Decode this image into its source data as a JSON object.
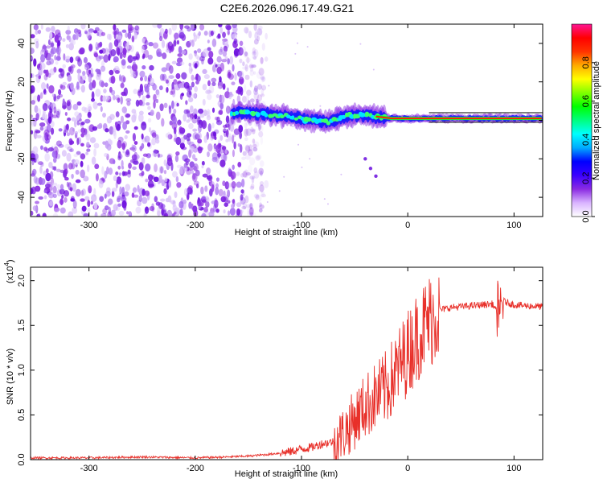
{
  "title": "C2E6.2026.096.17.49.G21",
  "chart_data": [
    {
      "type": "heatmap",
      "title": "",
      "xlabel": "Height of straight line (km)",
      "ylabel": "Frequency (Hz)",
      "xlim": [
        -355,
        127
      ],
      "ylim": [
        -50,
        50
      ],
      "xticks": [
        -300,
        -200,
        -100,
        0,
        100
      ],
      "yticks": [
        -40,
        -20,
        0,
        20,
        40
      ],
      "grid": false,
      "noise_region_x": [
        -355,
        -145
      ],
      "signal_ridge": {
        "x": [
          -165,
          -150,
          -130,
          -110,
          -95,
          -85,
          -75,
          -60,
          -45,
          -30,
          -15,
          0,
          20,
          50,
          80,
          100,
          127
        ],
        "frequency": [
          4,
          4,
          3,
          2,
          0,
          0,
          -1,
          2,
          3,
          2,
          1,
          1,
          1,
          1,
          1,
          1,
          1
        ]
      },
      "branch": {
        "x": [
          -40,
          -35,
          -30
        ],
        "frequency": [
          -20,
          -25,
          -29
        ]
      },
      "colorbar": {
        "label": "Normalized spectral amplitude",
        "range": [
          0,
          1
        ],
        "ticks": [
          "0.0",
          "0.2",
          "0.4",
          "0.6",
          "0.8"
        ],
        "colors": [
          "#ffffff",
          "#d9b3ff",
          "#8a2be2",
          "#3a00ff",
          "#0000ff",
          "#00aaff",
          "#00ffff",
          "#00ff80",
          "#00ff00",
          "#80ff00",
          "#ffff00",
          "#ffaa00",
          "#ff3300",
          "#ff0000",
          "#ff1493"
        ]
      }
    },
    {
      "type": "line",
      "title": "",
      "xlabel": "Height of straight line (km)",
      "ylabel": "SNR (10 * v/v)",
      "yscale_label": "(x10",
      "yscale_exponent": "4",
      "xlim": [
        -355,
        127
      ],
      "ylim": [
        0,
        2.15
      ],
      "xticks": [
        -300,
        -200,
        -100,
        0,
        100
      ],
      "yticks": [
        "0.0",
        "0.5",
        "1.0",
        "1.5",
        "2.0"
      ],
      "series": [
        {
          "name": "SNR",
          "color": "#e8302a",
          "x": [
            -355,
            -300,
            -250,
            -200,
            -170,
            -150,
            -130,
            -110,
            -100,
            -90,
            -80,
            -70,
            -60,
            -50,
            -40,
            -30,
            -20,
            -10,
            0,
            10,
            20,
            25,
            30,
            40,
            60,
            80,
            86,
            90,
            100,
            110,
            127
          ],
          "y": [
            0.02,
            0.02,
            0.03,
            0.02,
            0.03,
            0.04,
            0.06,
            0.09,
            0.12,
            0.14,
            0.18,
            0.2,
            0.3,
            0.45,
            0.6,
            0.7,
            0.8,
            1.0,
            1.2,
            1.4,
            1.55,
            1.62,
            1.67,
            1.7,
            1.72,
            1.74,
            1.6,
            1.77,
            1.73,
            1.72,
            1.71
          ]
        }
      ]
    }
  ]
}
